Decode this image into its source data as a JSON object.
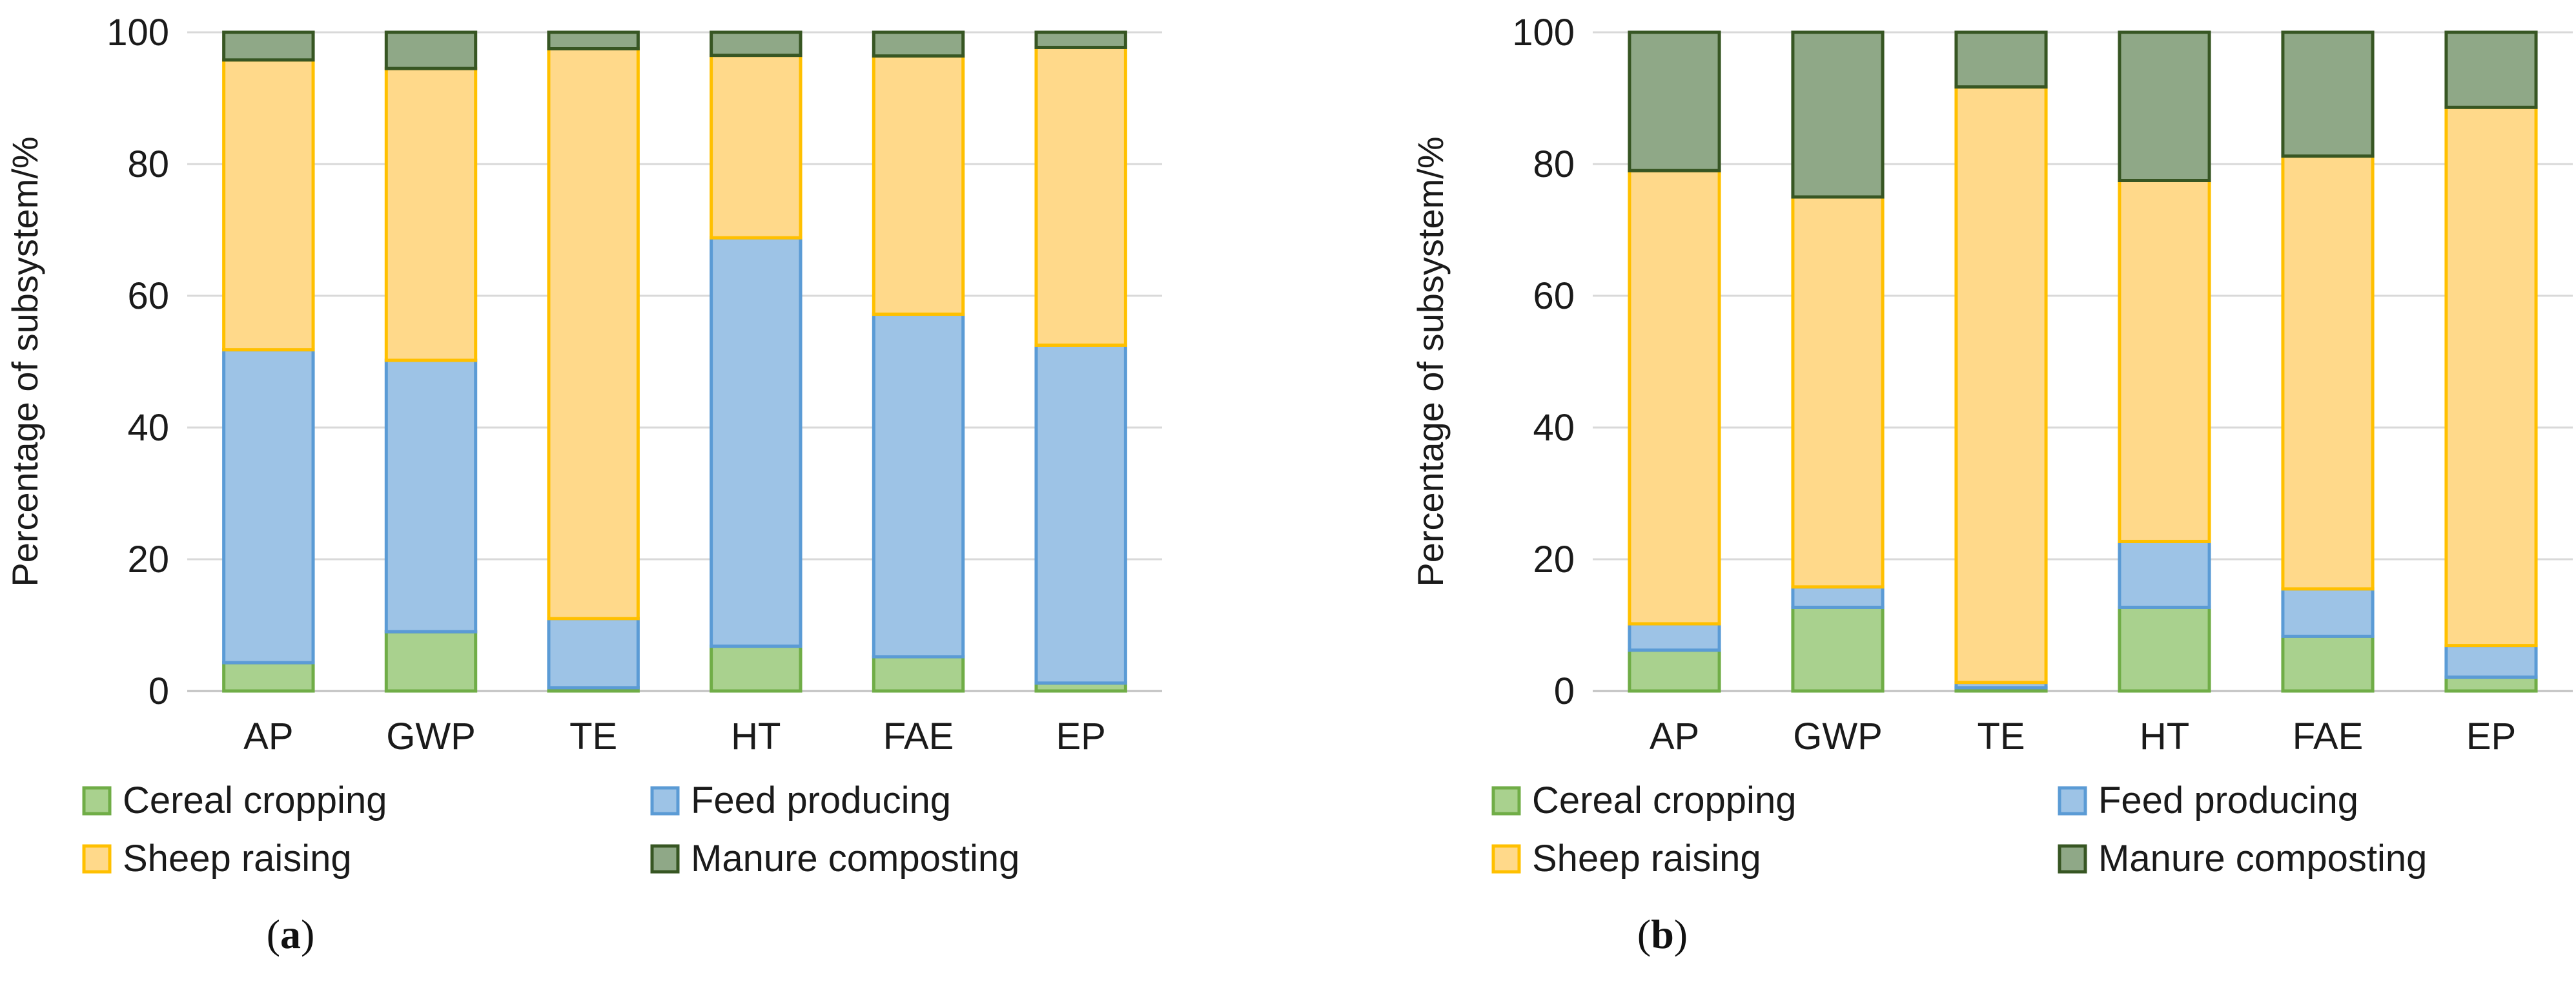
{
  "legend": [
    {
      "name": "Cereal cropping",
      "fill": "#a9d18e",
      "stroke": "#70ad47"
    },
    {
      "name": "Feed producing",
      "fill": "#9dc3e6",
      "stroke": "#5b9bd5"
    },
    {
      "name": "Sheep raising",
      "fill": "#ffd98a",
      "stroke": "#ffc000"
    },
    {
      "name": "Manure composting",
      "fill": "#8fa887",
      "stroke": "#375623"
    }
  ],
  "chart_data": [
    {
      "type": "bar",
      "stacked": true,
      "panel_label": "a",
      "ylabel": "Percentage of subsystem/%",
      "ylim": [
        0,
        100
      ],
      "yticks": [
        0,
        20,
        40,
        60,
        80,
        100
      ],
      "categories": [
        "AP",
        "GWP",
        "TE",
        "HT",
        "FAE",
        "EP"
      ],
      "series": [
        {
          "name": "Cereal cropping",
          "values": [
            4.3,
            9.0,
            0.5,
            6.8,
            5.2,
            1.2
          ]
        },
        {
          "name": "Feed producing",
          "values": [
            47.5,
            41.2,
            10.5,
            62.0,
            52.0,
            51.3
          ]
        },
        {
          "name": "Sheep raising",
          "values": [
            44.0,
            44.3,
            86.5,
            27.7,
            39.2,
            45.2
          ]
        },
        {
          "name": "Manure composting",
          "values": [
            4.2,
            5.5,
            2.5,
            3.5,
            3.6,
            2.3
          ]
        }
      ]
    },
    {
      "type": "bar",
      "stacked": true,
      "panel_label": "b",
      "ylabel": "Percentage of subsystem/%",
      "ylim": [
        0,
        100
      ],
      "yticks": [
        0,
        20,
        40,
        60,
        80,
        100
      ],
      "categories": [
        "AP",
        "GWP",
        "TE",
        "HT",
        "FAE",
        "EP"
      ],
      "series": [
        {
          "name": "Cereal cropping",
          "values": [
            6.2,
            12.7,
            0.5,
            12.7,
            8.3,
            2.1
          ]
        },
        {
          "name": "Feed producing",
          "values": [
            4.0,
            3.1,
            0.8,
            10.0,
            7.2,
            4.8
          ]
        },
        {
          "name": "Sheep raising",
          "values": [
            68.8,
            59.2,
            90.4,
            54.8,
            65.7,
            81.7
          ]
        },
        {
          "name": "Manure composting",
          "values": [
            21.0,
            25.0,
            8.3,
            22.5,
            18.8,
            11.4
          ]
        }
      ]
    }
  ]
}
